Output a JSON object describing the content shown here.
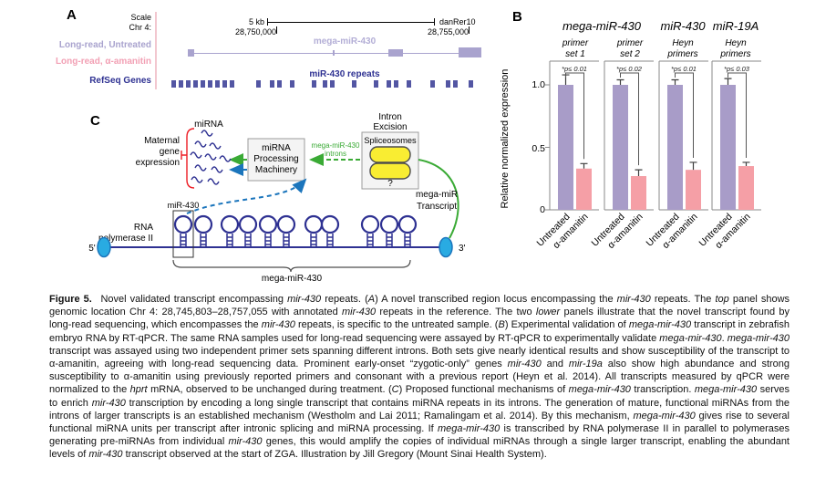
{
  "figure": {
    "panel_a": {
      "label": "A",
      "scale_label": "Scale",
      "chr_label": "Chr 4:",
      "scale_bar_label": "5 kb",
      "genome_build": "danRer10",
      "coord_left": "28,750,000",
      "coord_right": "28,755,000",
      "track_untreated": "Long-read, Untreated",
      "track_amanitin": "Long-read, α-amanitin",
      "track_refseq": "RefSeq Genes",
      "transcript_label": "mega-miR-430",
      "repeats_label": "miR-430 repeats",
      "refseq_positions": [
        188,
        196,
        204,
        212,
        220,
        228,
        236,
        244,
        252,
        281,
        296,
        304,
        318,
        342,
        354,
        362,
        386,
        410,
        424,
        432,
        446,
        472,
        489,
        497,
        514
      ]
    },
    "panel_b": {
      "label": "B"
    },
    "panel_c": {
      "label": "C",
      "mirna_label": "miRNA",
      "maternal_lines": [
        "Maternal",
        "gene",
        "expression"
      ],
      "machinery_lines": [
        "miRNA",
        "Processing",
        "Machinery"
      ],
      "intron_excision_lines": [
        "Intron",
        "Excision"
      ],
      "spliceosomes_label": "Spliceosomes",
      "question_mark": "?",
      "introns_label_lines": [
        "mega-miR-430",
        "introns"
      ],
      "transcript_label_lines": [
        "mega-miR",
        "Transcript"
      ],
      "rna_pol_lines": [
        "RNA",
        "polymerase II"
      ],
      "five_prime": "5'",
      "three_prime": "3'",
      "mir430_label": "miR-430",
      "mega_label": "mega-miR-430",
      "hairpin_x": [
        201,
        223,
        252,
        272,
        294,
        314,
        344,
        362,
        406,
        427,
        447
      ],
      "squiggles": [
        [
          227,
          146
        ],
        [
          220,
          158
        ],
        [
          236,
          160
        ],
        [
          215,
          170
        ],
        [
          231,
          172
        ],
        [
          247,
          174
        ],
        [
          220,
          184
        ],
        [
          238,
          186
        ],
        [
          216,
          197
        ],
        [
          234,
          199
        ]
      ]
    }
  },
  "chart_data": {
    "type": "bar",
    "title": "",
    "ylabel": "Relative normalized expression",
    "ylim": [
      0,
      1.15
    ],
    "yticks": [
      0,
      0.5,
      1.0
    ],
    "ytick_labels": [
      "0",
      "0.5",
      "1.0"
    ],
    "categories": [
      "Untreated",
      "α-amanitin"
    ],
    "group_headers": [
      "mega-miR-430",
      "miR-430",
      "miR-19A"
    ],
    "groups": [
      {
        "header": "mega-miR-430",
        "subtitle_lines": [
          "primer",
          "set 1"
        ],
        "pvalue": "*p≤ 0.01",
        "values": [
          1.0,
          0.33
        ],
        "errors": [
          0.08,
          0.04
        ]
      },
      {
        "header": "mega-miR-430",
        "subtitle_lines": [
          "primer",
          "set 2"
        ],
        "pvalue": "*p≤ 0.02",
        "values": [
          1.0,
          0.27
        ],
        "errors": [
          0.04,
          0.05
        ]
      },
      {
        "header": "miR-430",
        "subtitle_lines": [
          "Heyn",
          "primers"
        ],
        "pvalue": "*p≤ 0.01",
        "values": [
          1.0,
          0.32
        ],
        "errors": [
          0.04,
          0.06
        ]
      },
      {
        "header": "miR-19A",
        "subtitle_lines": [
          "Heyn",
          "primers"
        ],
        "pvalue": "*p≤ 0.03",
        "values": [
          1.0,
          0.35
        ],
        "errors": [
          0.05,
          0.03
        ]
      }
    ],
    "grid": false,
    "legend_position": "none",
    "colors": {
      "untreated": "#a89cc8",
      "amanitin": "#f59fa6"
    }
  },
  "colors": {
    "track_purple": "#a9a3ce",
    "track_pink": "#f2a0b4",
    "navy": "#2e3192",
    "refseq_blue": "#5356a3",
    "green": "#3aaa35",
    "blue": "#1b75bc",
    "cyan": "#29abe2",
    "yellow": "#f9ed32",
    "red": "#ed1c24"
  },
  "caption": {
    "segments": [
      {
        "t": "Figure 5.",
        "b": true
      },
      {
        "t": "  Novel validated transcript encompassing "
      },
      {
        "t": "mir-430",
        "i": true
      },
      {
        "t": " repeats. ("
      },
      {
        "t": "A",
        "i": true
      },
      {
        "t": ") A novel transcribed region locus encompassing the "
      },
      {
        "t": "mir-430",
        "i": true
      },
      {
        "t": " repeats. The "
      },
      {
        "t": "top",
        "i": true
      },
      {
        "t": " panel shows genomic location Chr 4: 28,745,803–28,757,055 with annotated "
      },
      {
        "t": "mir-430",
        "i": true
      },
      {
        "t": " repeats in the reference. The two "
      },
      {
        "t": "lower",
        "i": true
      },
      {
        "t": " panels illustrate that the novel transcript found by long-read sequencing, which encompasses the "
      },
      {
        "t": "mir-430",
        "i": true
      },
      {
        "t": " repeats, is specific to the untreated sample. ("
      },
      {
        "t": "B",
        "i": true
      },
      {
        "t": ") Experimental validation of "
      },
      {
        "t": "mega-mir-430",
        "i": true
      },
      {
        "t": " transcript in zebrafish embryo RNA by RT-qPCR. The same RNA samples used for long-read sequencing were assayed by RT-qPCR to experimentally validate "
      },
      {
        "t": "mega-mir-430",
        "i": true
      },
      {
        "t": ". "
      },
      {
        "t": "mega-mir-430",
        "i": true
      },
      {
        "t": " transcript was assayed using two independent primer sets spanning different introns. Both sets give nearly identical results and show susceptibility of the transcript to α-amanitin, agreeing with long-read sequencing data. Prominent early-onset “zygotic-only” genes "
      },
      {
        "t": "mir-430",
        "i": true
      },
      {
        "t": " and "
      },
      {
        "t": "mir-19a",
        "i": true
      },
      {
        "t": " also show high abundance and strong susceptibility to α-amanitin using previously reported primers and consonant with a previous report (Heyn et al. 2014). All transcripts measured by qPCR were normalized to the "
      },
      {
        "t": "hprt",
        "i": true
      },
      {
        "t": " mRNA, observed to be unchanged during treatment. ("
      },
      {
        "t": "C",
        "i": true
      },
      {
        "t": ") Proposed functional mechanisms of "
      },
      {
        "t": "mega-mir-430",
        "i": true
      },
      {
        "t": " transcription. "
      },
      {
        "t": "mega-mir-430",
        "i": true
      },
      {
        "t": " serves to enrich "
      },
      {
        "t": "mir-430",
        "i": true
      },
      {
        "t": " transcription by encoding a long single transcript that contains miRNA repeats in its introns. The generation of mature, functional miRNAs from the introns of larger transcripts is an established mechanism (Westholm and Lai 2011; Ramalingam et al. 2014). By this mechanism, "
      },
      {
        "t": "mega-mir-430",
        "i": true
      },
      {
        "t": " gives rise to several functional miRNA units per transcript after intronic splicing and miRNA processing. If "
      },
      {
        "t": "mega-mir-430",
        "i": true
      },
      {
        "t": " is transcribed by RNA polymerase II in parallel to polymerases generating pre-miRNAs from individual "
      },
      {
        "t": "mir-430",
        "i": true
      },
      {
        "t": " genes, this would amplify the copies of individual miRNAs through a single larger transcript, enabling the abundant levels of "
      },
      {
        "t": "mir-430",
        "i": true
      },
      {
        "t": " transcript observed at the start of ZGA. Illustration by Jill Gregory (Mount Sinai Health System)."
      }
    ]
  }
}
